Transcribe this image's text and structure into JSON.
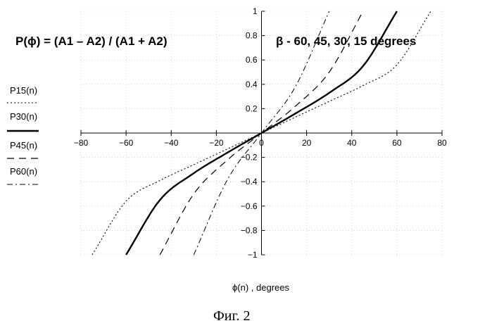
{
  "chart_data": {
    "type": "line",
    "title": "P(ϕ) = (A1 – A2) / (A1 + A2)",
    "subtitle": "β  -  60,  45,  30,  15  degrees",
    "xlabel": "ϕ(n)   , degrees",
    "xlim": [
      -80,
      80
    ],
    "ylim": [
      -1,
      1
    ],
    "xticks": [
      "−80",
      "−60",
      "−40",
      "−20",
      "0",
      "20",
      "40",
      "60",
      "80"
    ],
    "yticks": [
      "−1",
      "−0.8",
      "−0.6",
      "−0.4",
      "−0.2",
      "0",
      "0.2",
      "0.4",
      "0.6",
      "0.8",
      "1"
    ],
    "grid": true,
    "series": [
      {
        "name": "P15(n)",
        "style": "dotted",
        "x": [
          -75,
          -60,
          -45,
          -30,
          -15,
          0,
          15,
          30,
          45,
          60,
          75
        ],
        "y": [
          -1.0,
          -0.56,
          -0.39,
          -0.26,
          -0.13,
          0,
          0.13,
          0.26,
          0.39,
          0.56,
          1.0
        ]
      },
      {
        "name": "P30(n)",
        "style": "solid",
        "x": [
          -60,
          -45,
          -30,
          -15,
          0,
          15,
          30,
          45,
          60
        ],
        "y": [
          -1.0,
          -0.55,
          -0.33,
          -0.16,
          0,
          0.16,
          0.33,
          0.55,
          1.0
        ]
      },
      {
        "name": "P45(n)",
        "style": "dashed",
        "x": [
          -45,
          -30,
          -15,
          0,
          15,
          30,
          45
        ],
        "y": [
          -1.0,
          -0.5,
          -0.22,
          0,
          0.22,
          0.5,
          1.0
        ]
      },
      {
        "name": "P60(n)",
        "style": "dashdot",
        "x": [
          -30,
          -15,
          0,
          15,
          30
        ],
        "y": [
          -1.0,
          -0.38,
          0,
          0.38,
          1.0
        ]
      }
    ]
  },
  "caption": "Фиг. 2"
}
